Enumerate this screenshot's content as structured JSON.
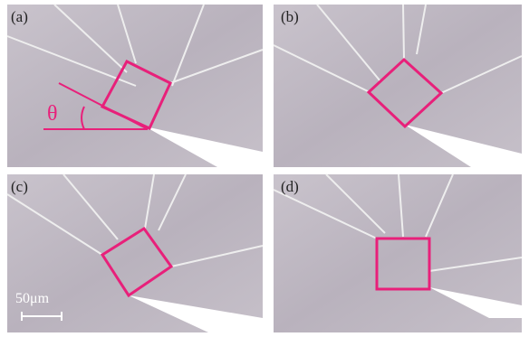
{
  "panels": [
    {
      "label": "(a)"
    },
    {
      "label": "(b)"
    },
    {
      "label": "(c)"
    },
    {
      "label": "(d)"
    }
  ],
  "angle_label": "θ",
  "scale_bar": "50μm"
}
